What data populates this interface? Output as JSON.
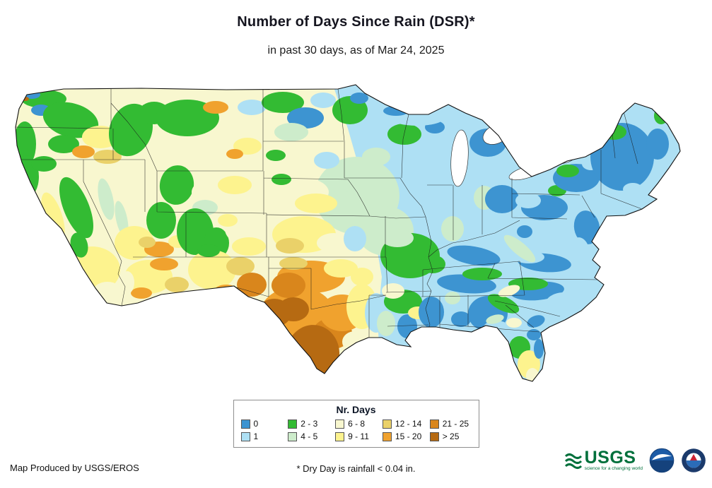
{
  "title": "Number of Days Since Rain (DSR)*",
  "subtitle": "in past 30 days, as of Mar 24, 2025",
  "legend": {
    "title": "Nr. Days",
    "items": [
      {
        "label": "0",
        "color": "#3d94d1"
      },
      {
        "label": "2 - 3",
        "color": "#33bb33"
      },
      {
        "label": "6 - 8",
        "color": "#f8f7cf"
      },
      {
        "label": "12 - 14",
        "color": "#ead169"
      },
      {
        "label": "21 - 25",
        "color": "#d9861c"
      },
      {
        "label": "1",
        "color": "#aee0f4"
      },
      {
        "label": "4 - 5",
        "color": "#cdeccb"
      },
      {
        "label": "9 - 11",
        "color": "#fdf38e"
      },
      {
        "label": "15 - 20",
        "color": "#f0a22e"
      },
      {
        "label": "> 25",
        "color": "#b66a12"
      }
    ]
  },
  "footer": {
    "credit": "Map Produced by USGS/EROS",
    "footnote": "* Dry Day is rainfall < 0.04 in.",
    "logos": {
      "usgs": {
        "text": "USGS",
        "tagline": "science for a changing world"
      }
    }
  }
}
